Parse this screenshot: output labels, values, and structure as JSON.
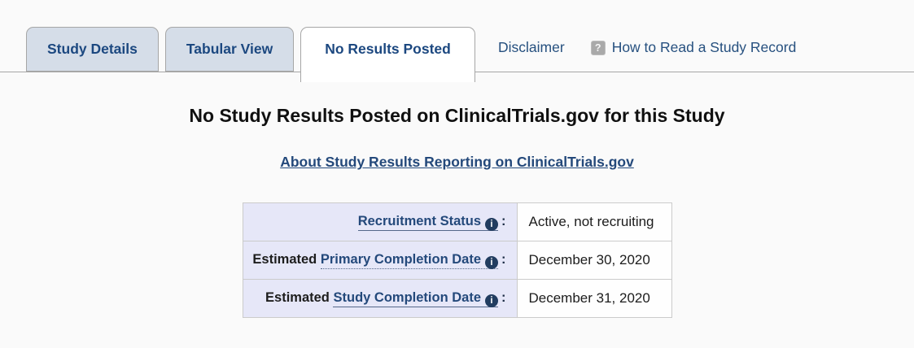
{
  "tabs": [
    {
      "label": "Study Details",
      "active": false
    },
    {
      "label": "Tabular View",
      "active": false
    },
    {
      "label": "No Results Posted",
      "active": true
    }
  ],
  "top_links": {
    "disclaimer": "Disclaimer",
    "how_to_read": "How to Read a Study Record",
    "help_icon_glyph": "?"
  },
  "main": {
    "heading": "No Study Results Posted on ClinicalTrials.gov for this Study",
    "about_link": "About Study Results Reporting on ClinicalTrials.gov"
  },
  "icons": {
    "info_glyph": "i"
  },
  "info_table": {
    "rows": [
      {
        "prefix": "",
        "term": "Recruitment Status",
        "colon": ":",
        "value": "Active, not recruiting"
      },
      {
        "prefix": "Estimated",
        "term": "Primary Completion Date",
        "colon": ":",
        "value": "December 30, 2020"
      },
      {
        "prefix": "Estimated",
        "term": "Study Completion Date",
        "colon": ":",
        "value": "December 31, 2020"
      }
    ]
  },
  "colors": {
    "page_background": "#fafafa",
    "inactive_tab_background": "#d5dde8",
    "active_tab_background": "#ffffff",
    "navy_link": "#24497b",
    "label_cell_background": "#e6e7f8",
    "table_border": "#cbcbcb",
    "info_icon_fill": "#223d60",
    "help_icon_fill": "#a9a9a9"
  }
}
